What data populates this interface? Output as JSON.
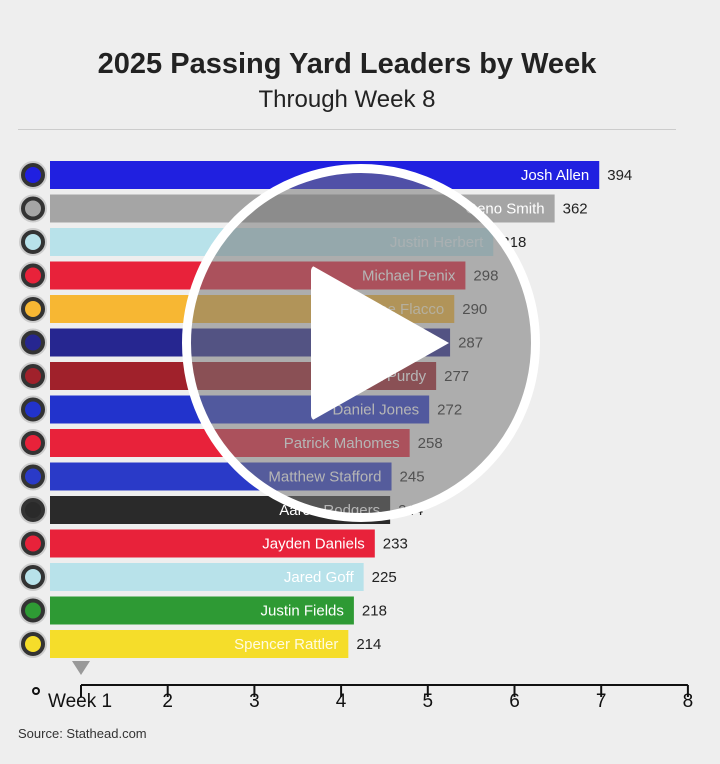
{
  "chart_data": {
    "type": "bar",
    "title": "2025 Passing Yard Leaders by Week",
    "subtitle": "Through Week 8",
    "orientation": "horizontal",
    "categories": [
      "Josh Allen",
      "Geno Smith",
      "Justin Herbert",
      "Michael Penix",
      "Joe Flacco",
      "Drake Maye",
      "Brock Purdy",
      "Daniel Jones",
      "Patrick Mahomes",
      "Matthew Stafford",
      "Aaron Rodgers",
      "Jayden Daniels",
      "Jared Goff",
      "Justin Fields",
      "Spencer Rattler"
    ],
    "values": [
      394,
      362,
      318,
      298,
      290,
      287,
      277,
      272,
      258,
      245,
      244,
      233,
      225,
      218,
      214
    ],
    "colors": [
      "#2020e0",
      "#a5a5a5",
      "#b8e2ea",
      "#e8223a",
      "#f7b733",
      "#262690",
      "#a0212b",
      "#2233cc",
      "#e8223a",
      "#2a3ac8",
      "#2a2a2a",
      "#e8223a",
      "#b8e2ea",
      "#2e9a34",
      "#f5dd2a"
    ],
    "label_colors": [
      "#fff",
      "#fff",
      "#e6f4f8",
      "#fff",
      "#fff2cc",
      "#fff",
      "#fff",
      "#fff",
      "#fff",
      "#fff",
      "#fff",
      "#fff",
      "#fff",
      "#fff",
      "#fffbe0"
    ],
    "timeline": {
      "ticks": [
        "Week 1",
        "2",
        "3",
        "4",
        "5",
        "6",
        "7",
        "8"
      ],
      "current_week": 1
    },
    "source": "Source: Stathead.com"
  },
  "overlay": {
    "icon": "play-icon"
  }
}
